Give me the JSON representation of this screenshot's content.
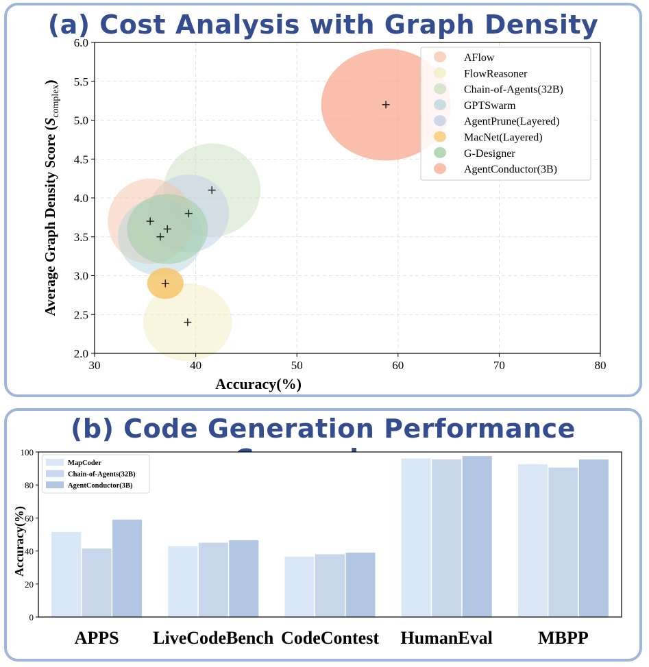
{
  "chart_data": [
    {
      "type": "scatter",
      "title": "(a) Cost Analysis with Graph Density",
      "xlabel": "Accuracy(%)",
      "ylabel_main": "Average Graph Density Score (",
      "ylabel_symbol": "S",
      "ylabel_sub": "complex",
      "ylabel_close": ")",
      "xlim": [
        30,
        80
      ],
      "ylim": [
        2.0,
        6.0
      ],
      "xticks": [
        "30",
        "40",
        "50",
        "60",
        "70",
        "80"
      ],
      "yticks": [
        "2.0",
        "2.5",
        "3.0",
        "3.5",
        "4.0",
        "4.5",
        "5.0",
        "5.5",
        "6.0"
      ],
      "grid": true,
      "legend_position": "top-right",
      "series": [
        {
          "name": "AFlow",
          "x": 35.5,
          "y": 3.7,
          "color": "#f5c4a8"
        },
        {
          "name": "FlowReasoner",
          "x": 39.2,
          "y": 2.4,
          "color": "#f2edc0"
        },
        {
          "name": "Chain-of-Agents(32B)",
          "x": 41.6,
          "y": 4.1,
          "color": "#c9dfc1"
        },
        {
          "name": "GPTSwarm",
          "x": 36.5,
          "y": 3.5,
          "color": "#b7d6dd"
        },
        {
          "name": "AgentPrune(Layered)",
          "x": 39.3,
          "y": 3.8,
          "color": "#bfcde8"
        },
        {
          "name": "MacNet(Layered)",
          "x": 37.0,
          "y": 2.9,
          "color": "#f7c56a"
        },
        {
          "name": "G-Designer",
          "x": 37.2,
          "y": 3.6,
          "color": "#9ccb9e"
        },
        {
          "name": "AgentConductor(3B)",
          "x": 58.8,
          "y": 5.2,
          "color": "#f8a890"
        }
      ]
    },
    {
      "type": "bar",
      "title": "(b) Code Generation Performance Comparison",
      "ylabel": "Accuracy(%)",
      "ylim": [
        0,
        100
      ],
      "yticks": [
        "0",
        "20",
        "40",
        "60",
        "80",
        "100"
      ],
      "categories": [
        "APPS",
        "LiveCodeBench",
        "CodeContest",
        "HumanEval",
        "MBPP"
      ],
      "legend_position": "top-left",
      "series": [
        {
          "name": "MapCoder",
          "values": [
            51.5,
            43.0,
            36.5,
            96.0,
            92.5
          ],
          "color": "#dae7f6"
        },
        {
          "name": "Chain-of-Agents(32B)",
          "values": [
            41.5,
            45.0,
            38.0,
            95.5,
            90.5
          ],
          "color": "#c7d6eb"
        },
        {
          "name": "AgentConductor(3B)",
          "values": [
            59.0,
            46.5,
            39.0,
            97.5,
            95.5
          ],
          "color": "#b1c6e3"
        }
      ]
    }
  ]
}
